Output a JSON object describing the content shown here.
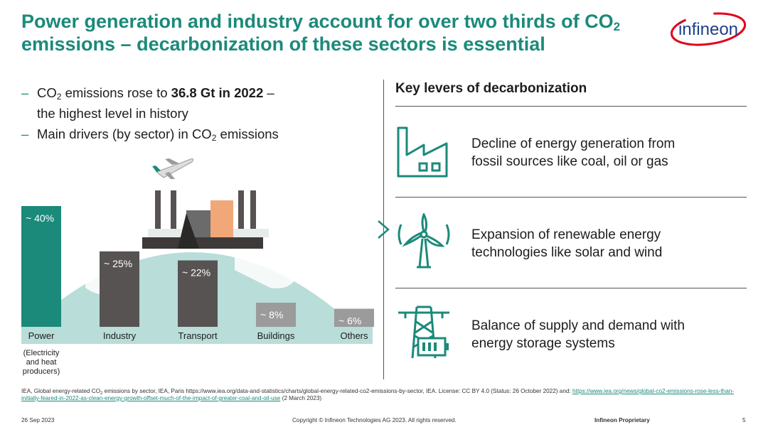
{
  "title": {
    "line1_a": "Power generation and industry account for over two thirds of CO",
    "line1_sub": "2",
    "line2": "emissions – decarbonization of these sectors is essential"
  },
  "logo": {
    "text": "infineon",
    "color": "#e2001a"
  },
  "bullets": {
    "dash": "–",
    "b1_a": "CO",
    "b1_sub": "2",
    "b1_b": " emissions rose to ",
    "b1_bold": "36.8 Gt in 2022",
    "b1_c": " –",
    "b1_line2": "the highest level in history",
    "b2_a": "Main drivers (by sector) in CO",
    "b2_sub": "2",
    "b2_b": " emissions"
  },
  "chart_data": {
    "type": "bar",
    "title": "",
    "unit": "%",
    "categories": [
      "Power",
      "Industry",
      "Transport",
      "Buildings",
      "Others"
    ],
    "values": [
      40,
      25,
      22,
      8,
      6
    ],
    "value_labels": [
      "~ 40%",
      "~ 25%",
      "~ 22%",
      "~ 8%",
      "~ 6%"
    ],
    "colors": [
      "#1b8a7a",
      "#575352",
      "#575352",
      "#9b9b9b",
      "#9b9b9b"
    ],
    "power_note": [
      "(Electricity",
      "and heat",
      "producers)"
    ],
    "ylim": [
      0,
      40
    ],
    "grid": false,
    "legend": "none"
  },
  "right": {
    "heading": "Key levers of decarbonization",
    "levers": [
      {
        "icon": "factory-icon",
        "line1": "Decline of energy generation from",
        "line2": "fossil sources like coal, oil or gas"
      },
      {
        "icon": "wind-turbine-icon",
        "line1": "Expansion of renewable energy",
        "line2": "technologies like solar and wind"
      },
      {
        "icon": "power-grid-battery-icon",
        "line1": "Balance of supply and demand with",
        "line2": "energy storage systems"
      }
    ]
  },
  "source": {
    "a": "IEA, Global energy-related CO",
    "sub": "2",
    "b": " emissions by sector, IEA, Paris https://www.iea.org/data-and-statistics/charts/global-energy-related-co2-emissions-by-sector, IEA. License: CC BY 4.0 (Status: 26 October 2022) and: ",
    "link": "https://www.iea.org/news/global-co2-emissions-rose-less-than-initially-feared-in-2022-as-clean-energy-growth-offset-much-of-the-impact-of-greater-coal-and-oil-use",
    "c": " (2 March 2023)"
  },
  "footer": {
    "date": "26 Sep 2023",
    "copyright": "Copyright © Infineon Technologies AG 2023. All rights reserved.",
    "proprietary": "Infineon Proprietary",
    "page": "5"
  },
  "colors": {
    "accent": "#1b8a7a",
    "globe": "#b9ddd8",
    "dark": "#575352",
    "grey": "#9b9b9b"
  }
}
